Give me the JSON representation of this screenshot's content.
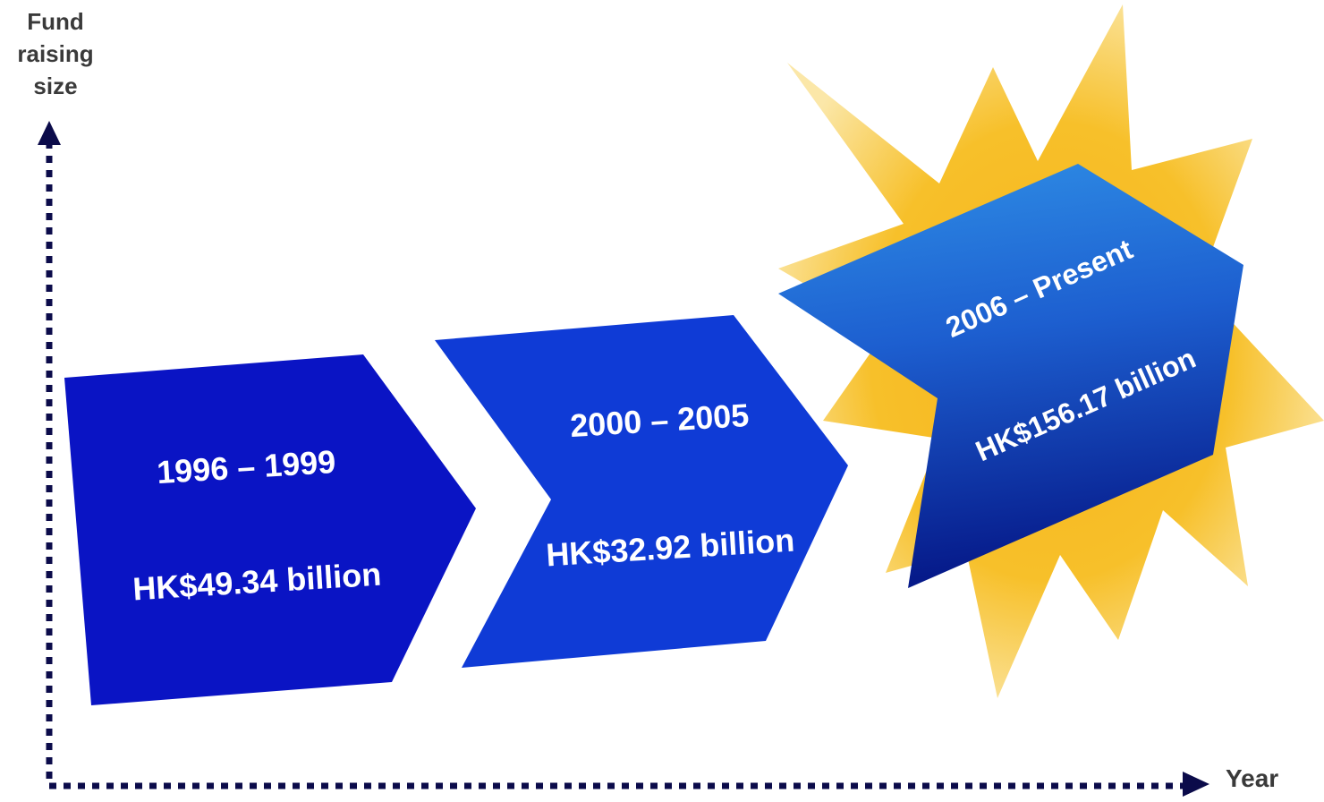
{
  "axes": {
    "y_label_lines": [
      "Fund",
      "raising",
      "size"
    ],
    "x_label": "Year"
  },
  "stages": [
    {
      "period": "1996 – 1999",
      "amount": "HK$49.34 billion",
      "color": "#0a14c4"
    },
    {
      "period": "2000 – 2005",
      "amount": "HK$32.92 billion",
      "color": "#0f3bd6"
    },
    {
      "period": "2006 – Present",
      "amount": "HK$156.17 billion",
      "color_top": "#2f8fe6",
      "color_bottom": "#061a8a"
    }
  ],
  "colors": {
    "axis": "#0b0b4a",
    "starburst": "#f7c02a"
  }
}
